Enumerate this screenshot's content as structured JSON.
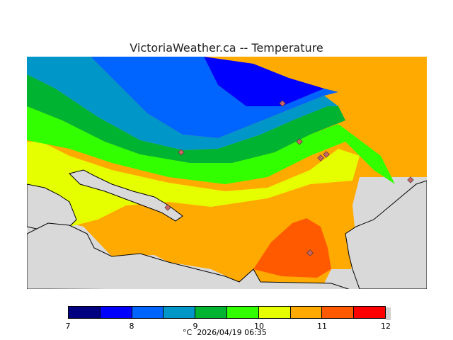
{
  "title": "VictoriaWeather.ca -- Temperature",
  "legend": {
    "ticks": [
      "7",
      "8",
      "9",
      "10",
      "11",
      "12"
    ],
    "colors": [
      "#000080",
      "#0000ff",
      "#0064ff",
      "#0096c8",
      "#00b432",
      "#32ff00",
      "#e6ff00",
      "#ffaa00",
      "#ff5a00",
      "#ff0000"
    ],
    "unit": "°C",
    "timestamp": "2026/04/19 06:35"
  },
  "map_colors": {
    "background": "#d9d9d9",
    "coastline": "#000000",
    "station_fill": "#c86464"
  }
}
